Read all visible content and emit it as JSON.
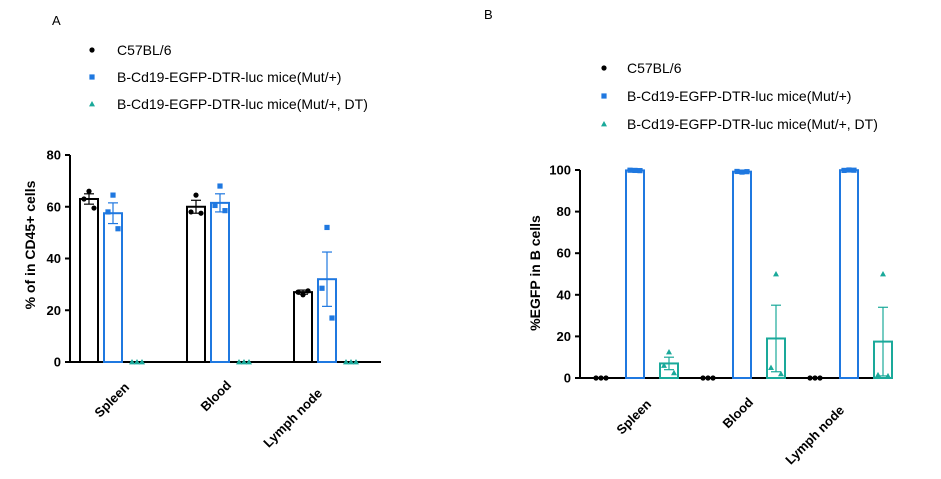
{
  "chart_data": [
    {
      "panel": "A",
      "type": "bar",
      "title": "",
      "xlabel": "",
      "ylabel": "% of  in CD45+ cells",
      "ylim": [
        0,
        80
      ],
      "yticks": [
        0,
        20,
        40,
        60,
        80
      ],
      "categories": [
        "Spleen",
        "Blood",
        "Lymph node"
      ],
      "legend_position": "top-left",
      "series": [
        {
          "name": "C57BL/6",
          "color": "#000000",
          "marker": "circle",
          "values": [
            63,
            60,
            27
          ],
          "sem": [
            2,
            2.5,
            0.8
          ],
          "points": [
            [
              66,
              63,
              59.5
            ],
            [
              64.5,
              58,
              57.5
            ],
            [
              26,
              27,
              27.5
            ]
          ]
        },
        {
          "name": "B-Cd19-EGFP-DTR-luc mice(Mut/+)",
          "color": "#1f78e0",
          "marker": "square",
          "values": [
            57.5,
            61.5,
            32
          ],
          "sem": [
            4,
            3.5,
            10.5
          ],
          "points": [
            [
              64.5,
              58,
              51.5
            ],
            [
              68,
              60.5,
              58.5
            ],
            [
              52,
              28.5,
              17
            ]
          ]
        },
        {
          "name": "B-Cd19-EGFP-DTR-luc mice(Mut/+, DT)",
          "color": "#1aa99a",
          "marker": "triangle",
          "values": [
            0,
            0,
            0
          ],
          "sem": [
            0,
            0,
            0
          ],
          "points": [
            [
              0,
              0,
              0
            ],
            [
              0,
              0,
              0
            ],
            [
              0,
              0,
              0
            ]
          ]
        }
      ]
    },
    {
      "panel": "B",
      "type": "bar",
      "title": "",
      "xlabel": "",
      "ylabel": "%EGFP in B cells",
      "ylim": [
        0,
        100
      ],
      "yticks": [
        0,
        20,
        40,
        60,
        80,
        100
      ],
      "categories": [
        "Spleen",
        "Blood",
        "Lymph node"
      ],
      "legend_position": "top-right",
      "series": [
        {
          "name": "C57BL/6",
          "color": "#000000",
          "marker": "circle",
          "values": [
            0,
            0,
            0
          ],
          "sem": [
            0,
            0,
            0
          ],
          "points": [
            [
              0,
              0,
              0
            ],
            [
              0,
              0,
              0
            ],
            [
              0,
              0,
              0
            ]
          ]
        },
        {
          "name": "B-Cd19-EGFP-DTR-luc mice(Mut/+)",
          "color": "#1f78e0",
          "marker": "square",
          "values": [
            99.8,
            99.2,
            99.9
          ],
          "sem": [
            0.1,
            0.2,
            0.1
          ],
          "points": [
            [
              99.8,
              99.9,
              99.7
            ],
            [
              99,
              99.3,
              99.2
            ],
            [
              100,
              99.8,
              99.9
            ]
          ]
        },
        {
          "name": "B-Cd19-EGFP-DTR-luc mice(Mut/+, DT)",
          "color": "#1aa99a",
          "marker": "triangle",
          "values": [
            7,
            19,
            17.5
          ],
          "sem": [
            3,
            16,
            16.5
          ],
          "points": [
            [
              12.5,
              6,
              2.5
            ],
            [
              50,
              5,
              2
            ],
            [
              50,
              1.5,
              1
            ]
          ]
        }
      ]
    }
  ]
}
